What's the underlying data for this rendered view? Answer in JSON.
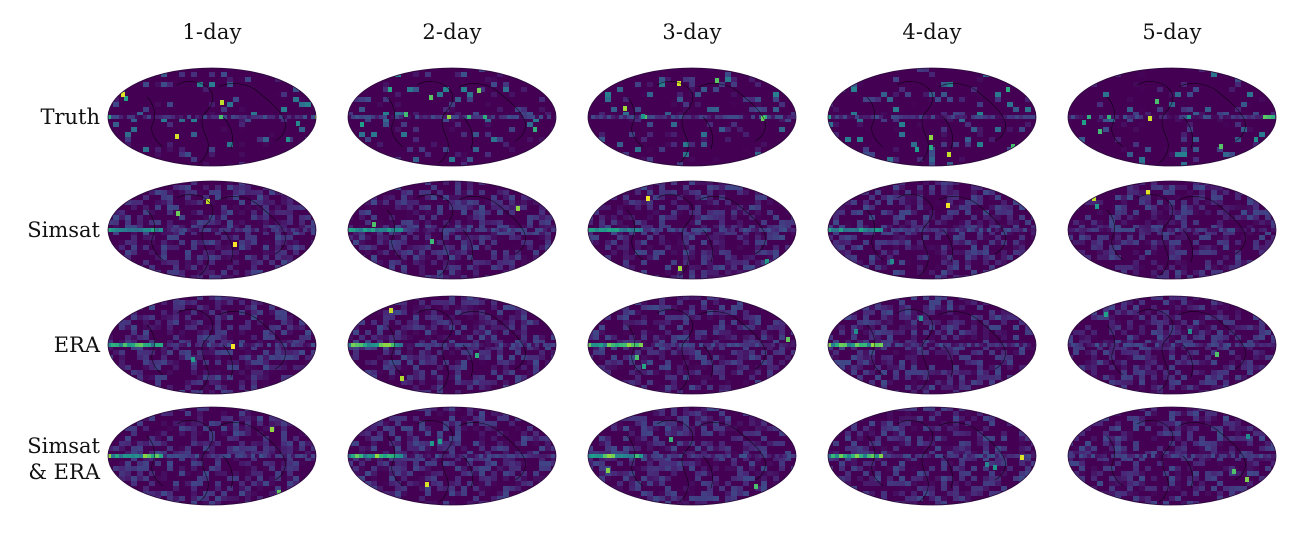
{
  "columns": [
    "1-day",
    "2-day",
    "3-day",
    "4-day",
    "5-day"
  ],
  "rows": [
    {
      "label": "Truth"
    },
    {
      "label": "Simsat"
    },
    {
      "label": "ERA"
    },
    {
      "label": "Simsat\n& ERA"
    }
  ],
  "projection": "mollweide",
  "colormap": "viridis",
  "colors": {
    "background": "#440154",
    "coastline": "#000000",
    "viridis_mid": "#21918c",
    "viridis_high": "#fde725"
  }
}
